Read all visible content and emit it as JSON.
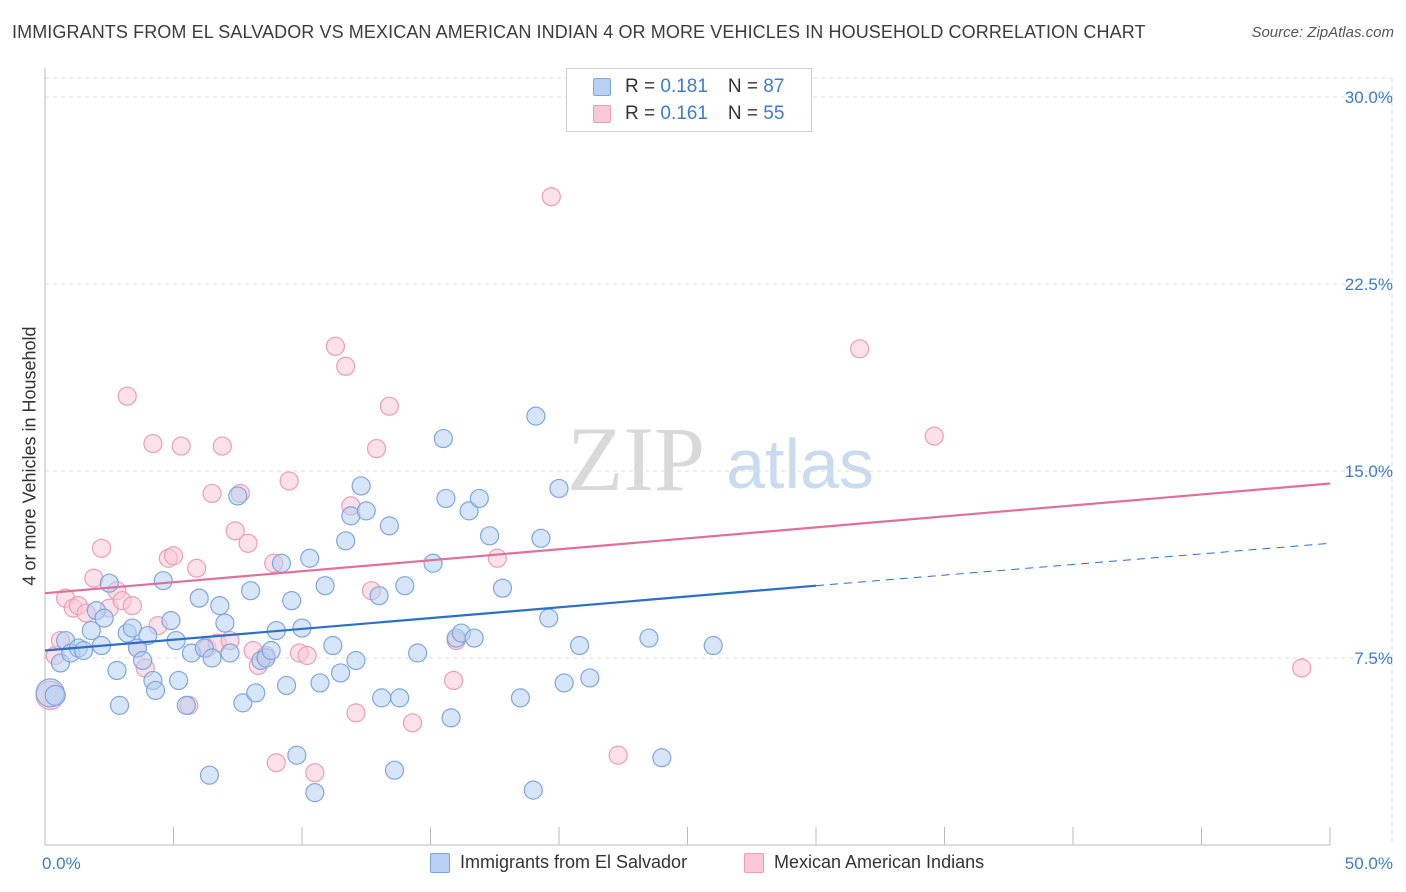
{
  "title": "IMMIGRANTS FROM EL SALVADOR VS MEXICAN AMERICAN INDIAN 4 OR MORE VEHICLES IN HOUSEHOLD CORRELATION CHART",
  "source": "Source: ZipAtlas.com",
  "watermark": {
    "zip": "ZIP",
    "atlas": "atlas"
  },
  "legend": {
    "series1": {
      "r_label": "R = ",
      "r_value": "0.181",
      "n_label": "N = ",
      "n_value": "87"
    },
    "series2": {
      "r_label": "R = ",
      "r_value": "0.161",
      "n_label": "N = ",
      "n_value": "55"
    }
  },
  "colors": {
    "blue_fill": "#b7d0f3",
    "blue_stroke": "#7fa6dc",
    "blue_line": "#2a6fc9",
    "pink_fill": "#f9c8d8",
    "pink_stroke": "#eb9db7",
    "pink_line": "#e0709a",
    "tick_label": "#3e7cc8",
    "grid": "#dddddd"
  },
  "chart_data": {
    "type": "scatter",
    "title": "IMMIGRANTS FROM EL SALVADOR VS MEXICAN AMERICAN INDIAN 4 OR MORE VEHICLES IN HOUSEHOLD CORRELATION CHART",
    "xlabel": "",
    "ylabel": "4 or more Vehicles in Household",
    "xlim": [
      0,
      50
    ],
    "ylim": [
      0,
      30
    ],
    "x_tick_labels": [
      "0.0%",
      "50.0%"
    ],
    "y_ticks": [
      7.5,
      15.0,
      22.5,
      30.0
    ],
    "y_tick_labels": [
      "7.5%",
      "15.0%",
      "22.5%",
      "30.0%"
    ],
    "grid": "horizontal dashed",
    "legend_position": "top-center",
    "series": [
      {
        "name": "Immigrants from El Salvador",
        "color": "#7fa6dc",
        "trend": {
          "x0": 0,
          "y0": 7.8,
          "x1": 30,
          "y1": 10.4,
          "dashed_to_x": 50,
          "dashed_to_y": 12.1
        },
        "points": [
          [
            0.2,
            6.1,
            14
          ],
          [
            0.4,
            6.0,
            10
          ],
          [
            0.6,
            7.3,
            9
          ],
          [
            0.8,
            8.2,
            9
          ],
          [
            1.0,
            7.7,
            9
          ],
          [
            1.3,
            7.9,
            9
          ],
          [
            1.5,
            7.8,
            9
          ],
          [
            1.8,
            8.6,
            9
          ],
          [
            2.0,
            9.4,
            9
          ],
          [
            2.2,
            8.0,
            9
          ],
          [
            2.3,
            9.1,
            9
          ],
          [
            2.5,
            10.5,
            9
          ],
          [
            2.8,
            7.0,
            9
          ],
          [
            2.9,
            5.6,
            9
          ],
          [
            3.2,
            8.5,
            9
          ],
          [
            3.4,
            8.7,
            9
          ],
          [
            3.6,
            7.9,
            9
          ],
          [
            3.8,
            7.4,
            9
          ],
          [
            4.0,
            8.4,
            9
          ],
          [
            4.2,
            6.6,
            9
          ],
          [
            4.3,
            6.2,
            9
          ],
          [
            4.6,
            10.6,
            9
          ],
          [
            4.9,
            9.0,
            9
          ],
          [
            5.1,
            8.2,
            9
          ],
          [
            5.2,
            6.6,
            9
          ],
          [
            5.5,
            5.6,
            9
          ],
          [
            5.7,
            7.7,
            9
          ],
          [
            6.0,
            9.9,
            9
          ],
          [
            6.2,
            7.9,
            9
          ],
          [
            6.5,
            7.5,
            9
          ],
          [
            6.8,
            9.6,
            9
          ],
          [
            7.0,
            8.9,
            9
          ],
          [
            7.2,
            7.7,
            9
          ],
          [
            6.4,
            2.8,
            9
          ],
          [
            7.5,
            14.0,
            9
          ],
          [
            7.7,
            5.7,
            9
          ],
          [
            8.0,
            10.2,
            9
          ],
          [
            8.2,
            6.1,
            9
          ],
          [
            8.4,
            7.4,
            9
          ],
          [
            8.6,
            7.5,
            9
          ],
          [
            8.8,
            7.8,
            9
          ],
          [
            9.0,
            8.6,
            9
          ],
          [
            9.2,
            11.3,
            9
          ],
          [
            9.4,
            6.4,
            9
          ],
          [
            9.6,
            9.8,
            9
          ],
          [
            9.8,
            3.6,
            9
          ],
          [
            10.0,
            8.7,
            9
          ],
          [
            10.3,
            11.5,
            9
          ],
          [
            10.5,
            2.1,
            9
          ],
          [
            10.7,
            6.5,
            9
          ],
          [
            10.9,
            10.4,
            9
          ],
          [
            11.2,
            8.0,
            9
          ],
          [
            11.5,
            6.9,
            9
          ],
          [
            11.7,
            12.2,
            9
          ],
          [
            11.9,
            13.2,
            9
          ],
          [
            12.1,
            7.4,
            9
          ],
          [
            12.3,
            14.4,
            9
          ],
          [
            12.5,
            13.4,
            9
          ],
          [
            13.0,
            10.0,
            9
          ],
          [
            13.1,
            5.9,
            9
          ],
          [
            13.4,
            12.8,
            9
          ],
          [
            13.6,
            3.0,
            9
          ],
          [
            13.8,
            5.9,
            9
          ],
          [
            14.0,
            10.4,
            9
          ],
          [
            14.5,
            7.7,
            9
          ],
          [
            15.1,
            11.3,
            9
          ],
          [
            15.5,
            16.3,
            9
          ],
          [
            15.6,
            13.9,
            9
          ],
          [
            15.8,
            5.1,
            9
          ],
          [
            16.0,
            8.3,
            9
          ],
          [
            16.2,
            8.5,
            9
          ],
          [
            16.5,
            13.4,
            9
          ],
          [
            16.7,
            8.3,
            9
          ],
          [
            16.9,
            13.9,
            9
          ],
          [
            17.3,
            12.4,
            9
          ],
          [
            17.8,
            10.3,
            9
          ],
          [
            18.5,
            5.9,
            9
          ],
          [
            19.0,
            2.2,
            9
          ],
          [
            19.1,
            17.2,
            9
          ],
          [
            19.3,
            12.3,
            9
          ],
          [
            19.6,
            9.1,
            9
          ],
          [
            20.0,
            14.3,
            9
          ],
          [
            20.2,
            6.5,
            9
          ],
          [
            20.8,
            8.0,
            9
          ],
          [
            21.2,
            6.7,
            9
          ],
          [
            23.5,
            8.3,
            9
          ],
          [
            24.0,
            3.5,
            9
          ],
          [
            26.0,
            8.0,
            9
          ]
        ]
      },
      {
        "name": "Mexican American Indians",
        "color": "#eb9db7",
        "trend": {
          "x0": 0,
          "y0": 10.1,
          "x1": 50,
          "y1": 14.5
        },
        "points": [
          [
            0.2,
            6.0,
            14
          ],
          [
            0.4,
            7.6,
            9
          ],
          [
            0.6,
            8.2,
            9
          ],
          [
            0.8,
            9.9,
            9
          ],
          [
            1.1,
            9.5,
            9
          ],
          [
            1.3,
            9.6,
            9
          ],
          [
            1.6,
            9.3,
            9
          ],
          [
            1.9,
            10.7,
            9
          ],
          [
            2.2,
            11.9,
            9
          ],
          [
            2.5,
            9.5,
            9
          ],
          [
            2.8,
            10.2,
            9
          ],
          [
            3.0,
            9.8,
            9
          ],
          [
            3.2,
            18.0,
            9
          ],
          [
            3.4,
            9.6,
            9
          ],
          [
            3.6,
            7.9,
            9
          ],
          [
            3.9,
            7.1,
            9
          ],
          [
            4.2,
            16.1,
            9
          ],
          [
            4.4,
            8.8,
            9
          ],
          [
            4.8,
            11.5,
            9
          ],
          [
            5.0,
            11.6,
            9
          ],
          [
            5.3,
            16.0,
            9
          ],
          [
            5.6,
            5.6,
            9
          ],
          [
            5.9,
            11.1,
            9
          ],
          [
            6.3,
            7.9,
            9
          ],
          [
            6.5,
            14.1,
            9
          ],
          [
            6.7,
            8.1,
            9
          ],
          [
            6.9,
            16.0,
            9
          ],
          [
            7.2,
            8.2,
            9
          ],
          [
            7.4,
            12.6,
            9
          ],
          [
            7.6,
            14.1,
            9
          ],
          [
            7.9,
            12.1,
            9
          ],
          [
            8.1,
            7.8,
            9
          ],
          [
            8.3,
            7.2,
            9
          ],
          [
            8.6,
            7.6,
            9
          ],
          [
            8.9,
            11.3,
            9
          ],
          [
            9.0,
            3.3,
            9
          ],
          [
            9.5,
            14.6,
            9
          ],
          [
            9.9,
            7.7,
            9
          ],
          [
            10.2,
            7.6,
            9
          ],
          [
            10.5,
            2.9,
            9
          ],
          [
            11.3,
            20.0,
            9
          ],
          [
            11.7,
            19.2,
            9
          ],
          [
            11.9,
            13.6,
            9
          ],
          [
            12.1,
            5.3,
            9
          ],
          [
            12.7,
            10.2,
            9
          ],
          [
            12.9,
            15.9,
            9
          ],
          [
            13.4,
            17.6,
            9
          ],
          [
            14.3,
            4.9,
            9
          ],
          [
            15.9,
            6.6,
            9
          ],
          [
            16.0,
            8.2,
            9
          ],
          [
            17.6,
            11.5,
            9
          ],
          [
            19.7,
            26.0,
            9
          ],
          [
            22.3,
            3.6,
            9
          ],
          [
            31.7,
            19.9,
            9
          ],
          [
            34.6,
            16.4,
            9
          ],
          [
            48.9,
            7.1,
            9
          ]
        ]
      }
    ]
  },
  "bottom_legend": {
    "series1": "Immigrants from El Salvador",
    "series2": "Mexican American Indians"
  }
}
